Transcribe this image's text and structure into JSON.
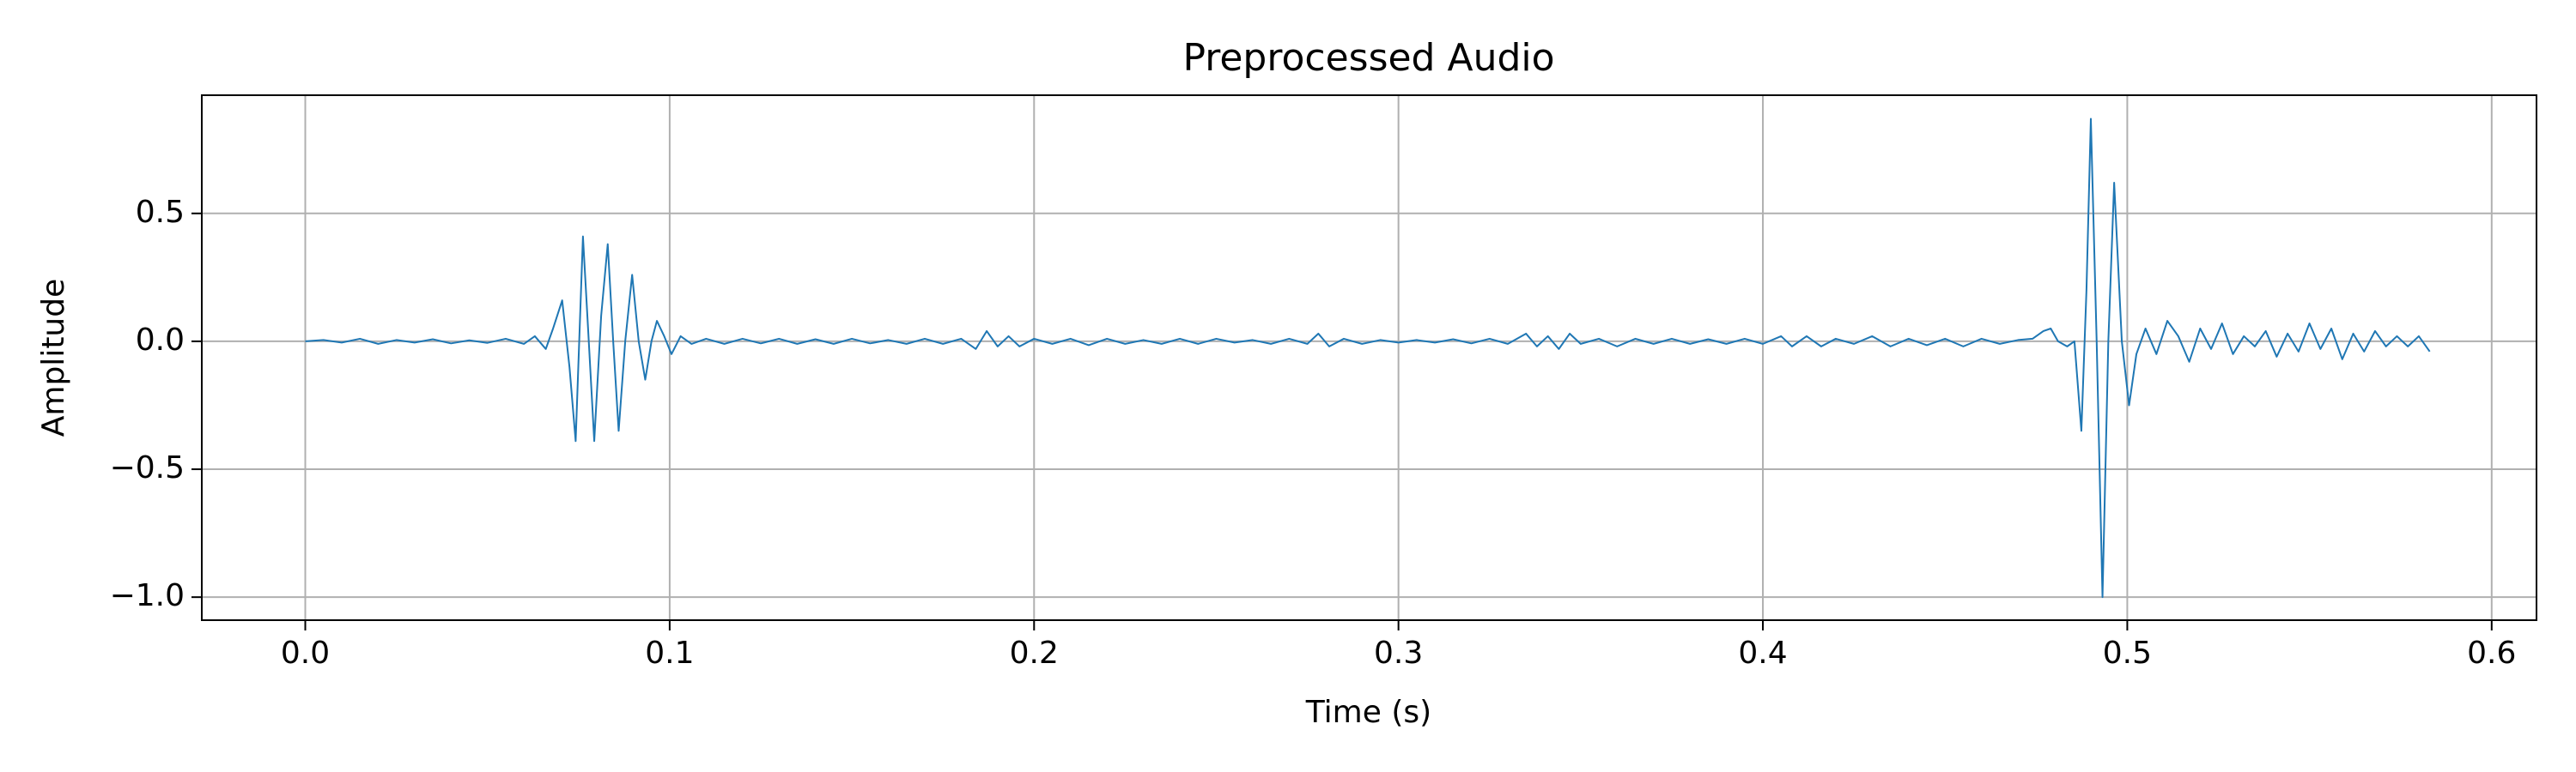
{
  "chart_data": {
    "type": "line",
    "title": "Preprocessed Audio",
    "xlabel": "Time (s)",
    "ylabel": "Amplitude",
    "color": "#1f77b4",
    "grid": true,
    "xlim": [
      -0.0284,
      0.6123
    ],
    "ylim": [
      -1.09,
      0.962
    ],
    "xticks": [
      {
        "value": 0,
        "label": "0.0"
      },
      {
        "value": 0.1,
        "label": "0.1"
      },
      {
        "value": 0.2,
        "label": "0.2"
      },
      {
        "value": 0.3,
        "label": "0.3"
      },
      {
        "value": 0.4,
        "label": "0.4"
      },
      {
        "value": 0.5,
        "label": "0.5"
      },
      {
        "value": 0.6,
        "label": "0.6"
      }
    ],
    "yticks": [
      {
        "value": -1,
        "label": "−1.0"
      },
      {
        "value": -0.5,
        "label": "−0.5"
      },
      {
        "value": 0,
        "label": "0.0"
      },
      {
        "value": 0.5,
        "label": "0.5"
      }
    ],
    "x": [
      0.0,
      0.005,
      0.01,
      0.015,
      0.02,
      0.025,
      0.03,
      0.035,
      0.04,
      0.045,
      0.05,
      0.055,
      0.06,
      0.063,
      0.066,
      0.068,
      0.0705,
      0.0725,
      0.0742,
      0.0762,
      0.0778,
      0.0793,
      0.0812,
      0.083,
      0.0845,
      0.086,
      0.0878,
      0.0897,
      0.0915,
      0.0933,
      0.095,
      0.0965,
      0.0985,
      0.1005,
      0.103,
      0.106,
      0.11,
      0.115,
      0.12,
      0.125,
      0.13,
      0.135,
      0.14,
      0.145,
      0.15,
      0.155,
      0.16,
      0.165,
      0.17,
      0.175,
      0.18,
      0.184,
      0.187,
      0.19,
      0.193,
      0.196,
      0.2,
      0.205,
      0.21,
      0.215,
      0.22,
      0.225,
      0.23,
      0.235,
      0.24,
      0.245,
      0.25,
      0.255,
      0.26,
      0.265,
      0.27,
      0.275,
      0.278,
      0.281,
      0.285,
      0.29,
      0.295,
      0.3,
      0.305,
      0.31,
      0.315,
      0.32,
      0.325,
      0.33,
      0.335,
      0.338,
      0.341,
      0.344,
      0.347,
      0.35,
      0.355,
      0.36,
      0.365,
      0.37,
      0.375,
      0.38,
      0.385,
      0.39,
      0.395,
      0.4,
      0.405,
      0.408,
      0.412,
      0.416,
      0.42,
      0.425,
      0.43,
      0.435,
      0.44,
      0.445,
      0.45,
      0.455,
      0.46,
      0.465,
      0.47,
      0.474,
      0.477,
      0.479,
      0.481,
      0.4835,
      0.4855,
      0.4874,
      0.4888,
      0.49,
      0.4916,
      0.4932,
      0.4948,
      0.4964,
      0.4985,
      0.5005,
      0.5025,
      0.505,
      0.508,
      0.511,
      0.514,
      0.517,
      0.52,
      0.523,
      0.526,
      0.529,
      0.532,
      0.535,
      0.538,
      0.541,
      0.544,
      0.547,
      0.55,
      0.553,
      0.556,
      0.559,
      0.562,
      0.565,
      0.568,
      0.571,
      0.574,
      0.577,
      0.58,
      0.583
    ],
    "values": [
      0.0,
      0.005,
      -0.005,
      0.01,
      -0.01,
      0.005,
      -0.005,
      0.008,
      -0.008,
      0.004,
      -0.006,
      0.01,
      -0.01,
      0.02,
      -0.03,
      0.05,
      0.16,
      -0.1,
      -0.39,
      0.41,
      0.0,
      -0.39,
      0.1,
      0.38,
      0.0,
      -0.35,
      0.0,
      0.26,
      0.0,
      -0.15,
      0.0,
      0.08,
      0.02,
      -0.05,
      0.02,
      -0.01,
      0.01,
      -0.01,
      0.01,
      -0.008,
      0.01,
      -0.01,
      0.008,
      -0.01,
      0.01,
      -0.008,
      0.005,
      -0.01,
      0.01,
      -0.01,
      0.01,
      -0.03,
      0.04,
      -0.02,
      0.02,
      -0.02,
      0.01,
      -0.01,
      0.01,
      -0.015,
      0.01,
      -0.01,
      0.005,
      -0.01,
      0.01,
      -0.01,
      0.01,
      -0.005,
      0.005,
      -0.01,
      0.01,
      -0.01,
      0.03,
      -0.02,
      0.01,
      -0.01,
      0.005,
      -0.005,
      0.005,
      -0.005,
      0.008,
      -0.008,
      0.01,
      -0.01,
      0.03,
      -0.02,
      0.02,
      -0.03,
      0.03,
      -0.01,
      0.01,
      -0.02,
      0.01,
      -0.01,
      0.01,
      -0.01,
      0.008,
      -0.01,
      0.01,
      -0.01,
      0.02,
      -0.02,
      0.02,
      -0.02,
      0.01,
      -0.01,
      0.02,
      -0.02,
      0.01,
      -0.015,
      0.01,
      -0.02,
      0.01,
      -0.01,
      0.005,
      0.01,
      0.04,
      0.05,
      0.0,
      -0.02,
      0.0,
      -0.35,
      0.2,
      0.87,
      0.0,
      -1.0,
      0.0,
      0.62,
      0.0,
      -0.25,
      -0.05,
      0.05,
      -0.05,
      0.08,
      0.02,
      -0.08,
      0.05,
      -0.03,
      0.07,
      -0.05,
      0.02,
      -0.02,
      0.04,
      -0.06,
      0.03,
      -0.04,
      0.07,
      -0.03,
      0.05,
      -0.07,
      0.03,
      -0.04,
      0.04,
      -0.02,
      0.02,
      -0.02,
      0.02,
      -0.04
    ]
  }
}
